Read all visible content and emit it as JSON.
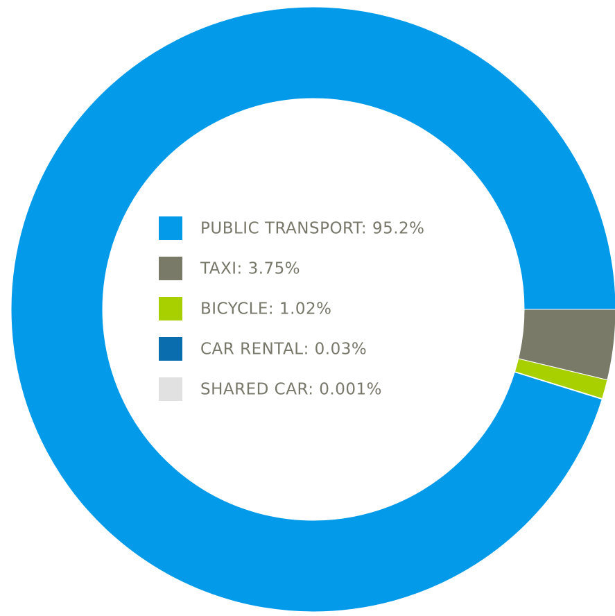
{
  "chart_data": {
    "type": "donut",
    "categories": [
      "PUBLIC TRANSPORT: 95.2%",
      "TAXI: 3.75%",
      "BICYCLE: 1.02%",
      "CAR RENTAL: 0.03%",
      "SHARED CAR: 0.001%"
    ],
    "values": [
      95.2,
      3.75,
      1.02,
      0.03,
      0.001
    ],
    "colors": [
      "#039be9",
      "#7a7a68",
      "#a8d000",
      "#0a6eae",
      "#e1e1e1"
    ]
  }
}
